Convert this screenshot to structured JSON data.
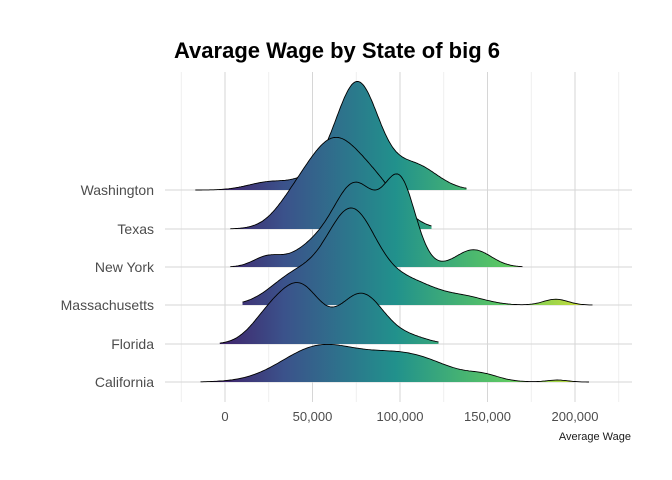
{
  "chart_data": {
    "type": "ridgeline",
    "title": "Avarage Wage by State of big 6",
    "xlabel": "Average Wage",
    "ylabel": "",
    "xlim": [
      -30000,
      225000
    ],
    "x_ticks": [
      0,
      50000,
      100000,
      150000,
      200000
    ],
    "x_tick_labels": [
      "0",
      "50,000",
      "100,000",
      "150,000",
      "200,000"
    ],
    "grid": true,
    "fill": "gradient along x (viridis, dark purple to yellow)",
    "gradient_stops": [
      "#440154",
      "#3b528b",
      "#21918c",
      "#5ec962",
      "#fde725"
    ],
    "categories": [
      "California",
      "Florida",
      "Massachusetts",
      "New York",
      "Texas",
      "Washington"
    ],
    "series": [
      {
        "name": "California",
        "x_range": [
          -14000,
          208000
        ],
        "peaks": [
          {
            "x": 53000,
            "h": 0.87,
            "w": 21000
          },
          {
            "x": 102000,
            "h": 0.72,
            "w": 24000
          },
          {
            "x": 148000,
            "h": 0.12,
            "w": 9000
          },
          {
            "x": 190000,
            "h": 0.05,
            "w": 6000
          }
        ]
      },
      {
        "name": "Florida",
        "x_range": [
          -3000,
          122000
        ],
        "peaks": [
          {
            "x": 26000,
            "h": 0.75,
            "w": 11000
          },
          {
            "x": 44000,
            "h": 1.33,
            "w": 11000
          },
          {
            "x": 78000,
            "h": 1.31,
            "w": 13000
          },
          {
            "x": 107000,
            "h": 0.15,
            "w": 10000
          }
        ]
      },
      {
        "name": "Massachusetts",
        "x_range": [
          10000,
          210000
        ],
        "peaks": [
          {
            "x": 40000,
            "h": 0.75,
            "w": 14000
          },
          {
            "x": 72000,
            "h": 2.4,
            "w": 14000
          },
          {
            "x": 105000,
            "h": 0.6,
            "w": 16000
          },
          {
            "x": 138000,
            "h": 0.18,
            "w": 12000
          },
          {
            "x": 189000,
            "h": 0.15,
            "w": 7000
          }
        ]
      },
      {
        "name": "New York",
        "x_range": [
          3000,
          170000
        ],
        "peaks": [
          {
            "x": 24000,
            "h": 0.25,
            "w": 8000
          },
          {
            "x": 52000,
            "h": 0.55,
            "w": 13000
          },
          {
            "x": 75000,
            "h": 2.05,
            "w": 12000
          },
          {
            "x": 100000,
            "h": 2.15,
            "w": 9000
          },
          {
            "x": 142000,
            "h": 0.45,
            "w": 10000
          }
        ]
      },
      {
        "name": "Texas",
        "x_range": [
          3000,
          118000
        ],
        "peaks": [
          {
            "x": 37000,
            "h": 0.25,
            "w": 10000
          },
          {
            "x": 62000,
            "h": 2.3,
            "w": 17000
          },
          {
            "x": 90000,
            "h": 0.7,
            "w": 13000
          }
        ]
      },
      {
        "name": "Washington",
        "x_range": [
          -17000,
          138000
        ],
        "peaks": [
          {
            "x": 25000,
            "h": 0.2,
            "w": 12000
          },
          {
            "x": 55000,
            "h": 0.35,
            "w": 13000
          },
          {
            "x": 76000,
            "h": 2.7,
            "w": 12000
          },
          {
            "x": 108000,
            "h": 0.65,
            "w": 13000
          }
        ]
      }
    ]
  }
}
